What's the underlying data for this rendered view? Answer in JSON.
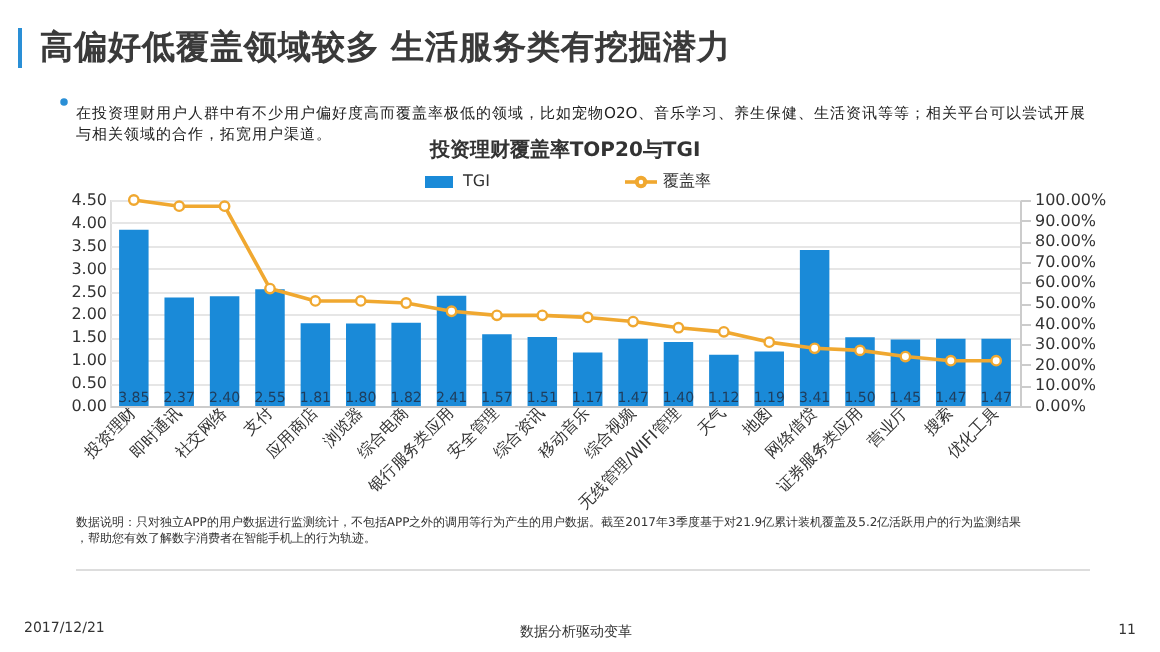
{
  "chart_data": {
    "type": "bar",
    "title": "高偏好低覆盖领域较多  生活服务类有挖掘潜力",
    "subtitle": "在投资理财用户人群中有不少用户偏好度高而覆盖率极低的领域，比如宠物O2O、音乐学习、养生保健、生活资讯等等；相关平台可以尝试开展与相关领域的合作，拓宽用户渠道。",
    "annotations": [
      "投资理财覆盖率TOP20与TGI",
      "数据说明：只对独立APP的用户数据进行监测统计，不包括APP之外的调用等行为产生的用户数据。截至2017年3季度基于对21.9亿累计装机覆盖及5.2亿活跃用户的行为监测结果，帮助您有效了解数字消费者在智能手机上的行为轨迹。",
      "2017/12/21",
      "数据分析驱动变革",
      "11"
    ],
    "categories": [
      "投资理财",
      "即时通讯",
      "社交网络",
      "支付",
      "应用商店",
      "浏览器",
      "综合电商",
      "银行服务类应用",
      "安全管理",
      "综合资讯",
      "移动音乐",
      "综合视频",
      "无线管理/WIFI管理",
      "天气",
      "地图",
      "网络借贷",
      "证券服务类应用",
      "营业厅",
      "搜索",
      "优化工具"
    ],
    "series": [
      {
        "name": "TGI",
        "color": "#1a8ad8",
        "values": [
          3.85,
          2.37,
          2.4,
          2.55,
          1.81,
          1.8,
          1.82,
          2.41,
          1.57,
          1.51,
          1.17,
          1.47,
          1.4,
          1.12,
          1.19,
          3.41,
          1.5,
          1.45,
          1.47,
          1.47
        ],
        "value_labels": [
          "3.85",
          "2.37",
          "2.40",
          "2.55",
          "1.81",
          "1.80",
          "1.82",
          "2.41",
          "1.57",
          "1.51",
          "1.17",
          "1.47",
          "1.40",
          "1.12",
          "1.19",
          "3.41",
          "1.50",
          "1.45",
          "1.47",
          "1.47"
        ]
      },
      {
        "name": "覆盖率",
        "type": "line",
        "axis": "y2",
        "color": "#f0a830",
        "marker": "circle",
        "values": [
          100,
          97,
          97,
          57,
          51,
          51,
          50,
          46,
          44,
          44,
          43,
          41,
          38,
          36,
          31,
          28,
          27,
          24,
          22,
          22
        ]
      }
    ],
    "ylim": [
      0,
      4.5
    ],
    "yticks": [
      {
        "value": 0,
        "label": "0.00"
      },
      {
        "value": 0.5,
        "label": "0.50"
      },
      {
        "value": 1,
        "label": "1.00"
      },
      {
        "value": 1.5,
        "label": "1.50"
      },
      {
        "value": 2,
        "label": "2.00"
      },
      {
        "value": 2.5,
        "label": "2.50"
      },
      {
        "value": 3,
        "label": "3.00"
      },
      {
        "value": 3.5,
        "label": "3.50"
      },
      {
        "value": 4,
        "label": "4.00"
      },
      {
        "value": 4.5,
        "label": "4.50"
      }
    ],
    "y2lim": [
      0,
      100
    ],
    "y2ticks": [
      {
        "value": 0,
        "label": "0.00%"
      },
      {
        "value": 10,
        "label": "10.00%"
      },
      {
        "value": 20,
        "label": "20.00%"
      },
      {
        "value": 30,
        "label": "30.00%"
      },
      {
        "value": 40,
        "label": "40.00%"
      },
      {
        "value": 50,
        "label": "50.00%"
      },
      {
        "value": 60,
        "label": "60.00%"
      },
      {
        "value": 70,
        "label": "70.00%"
      },
      {
        "value": 80,
        "label": "80.00%"
      },
      {
        "value": 90,
        "label": "90.00%"
      },
      {
        "value": 100,
        "label": "100.00%"
      }
    ],
    "grid": "y",
    "legend": "top",
    "line_style": "solid"
  }
}
